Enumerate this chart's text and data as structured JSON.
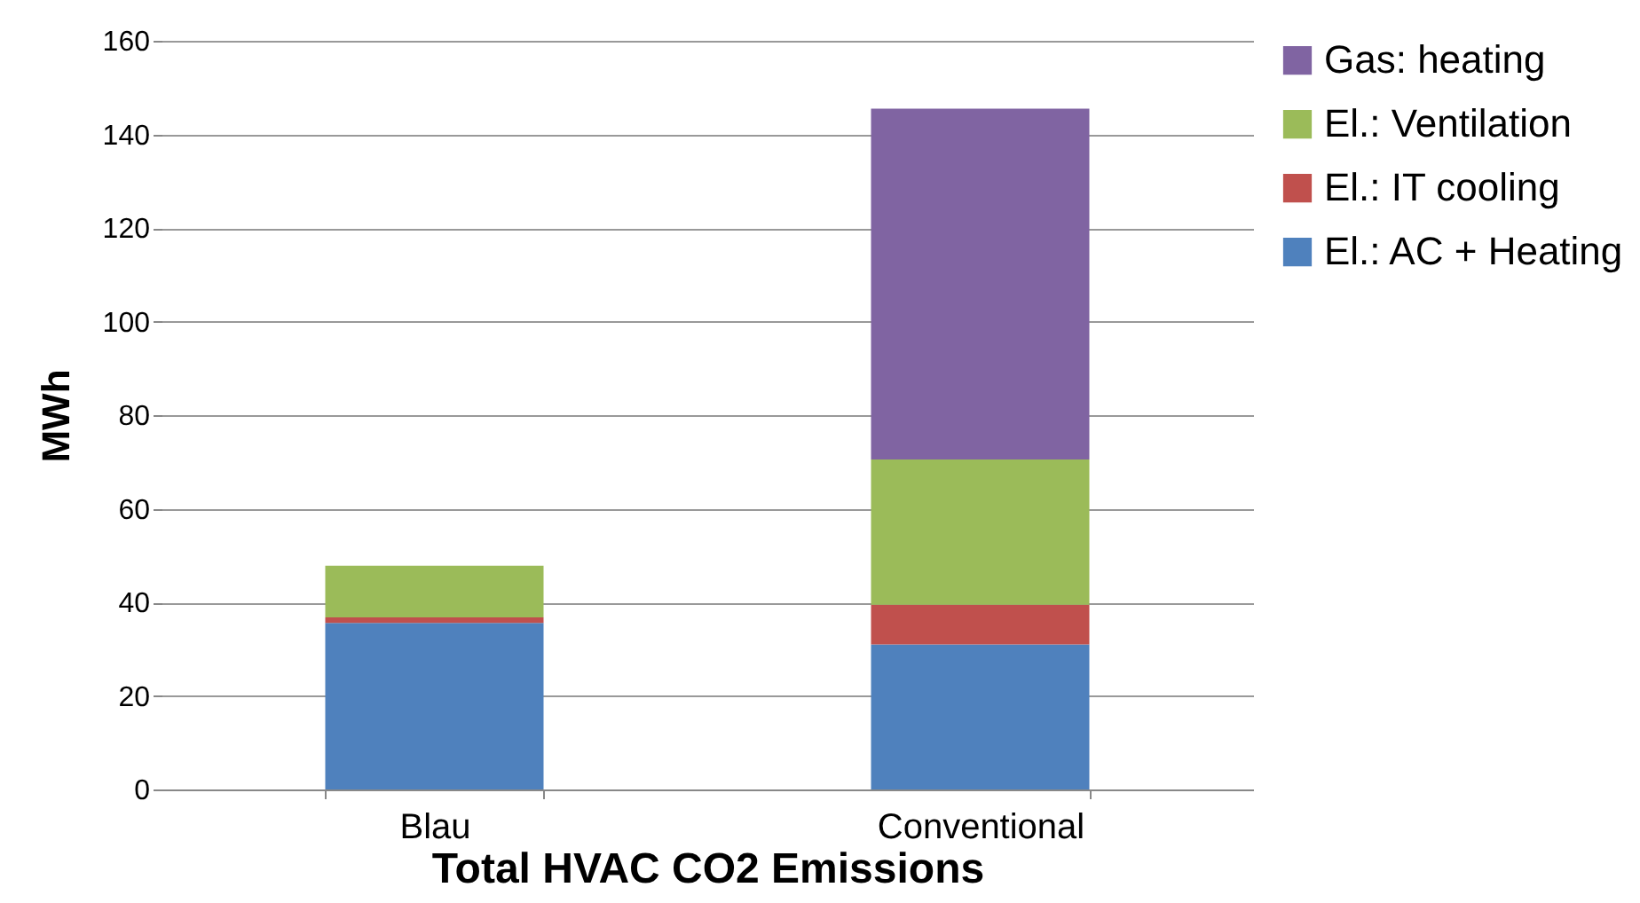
{
  "chart_data": {
    "type": "bar",
    "stacked": true,
    "xlabel": "Total HVAC CO2 Emissions",
    "ylabel": "MWh",
    "categories": [
      "Blau",
      "Conventional"
    ],
    "series": [
      {
        "name": "El.: AC + Heating",
        "color": "#4f81bd",
        "values": [
          35.6,
          31
        ]
      },
      {
        "name": "El.: IT cooling",
        "color": "#c0504d",
        "values": [
          1.2,
          8.5
        ]
      },
      {
        "name": "El.: Ventilation",
        "color": "#9bbb59",
        "values": [
          11,
          31
        ]
      },
      {
        "name": "Gas: heating",
        "color": "#8064a2",
        "values": [
          null,
          75
        ]
      }
    ],
    "ylim": [
      0,
      160
    ],
    "yticks": [
      0,
      20,
      40,
      60,
      80,
      100,
      120,
      140,
      160
    ],
    "grid": "y",
    "legend": "right"
  }
}
